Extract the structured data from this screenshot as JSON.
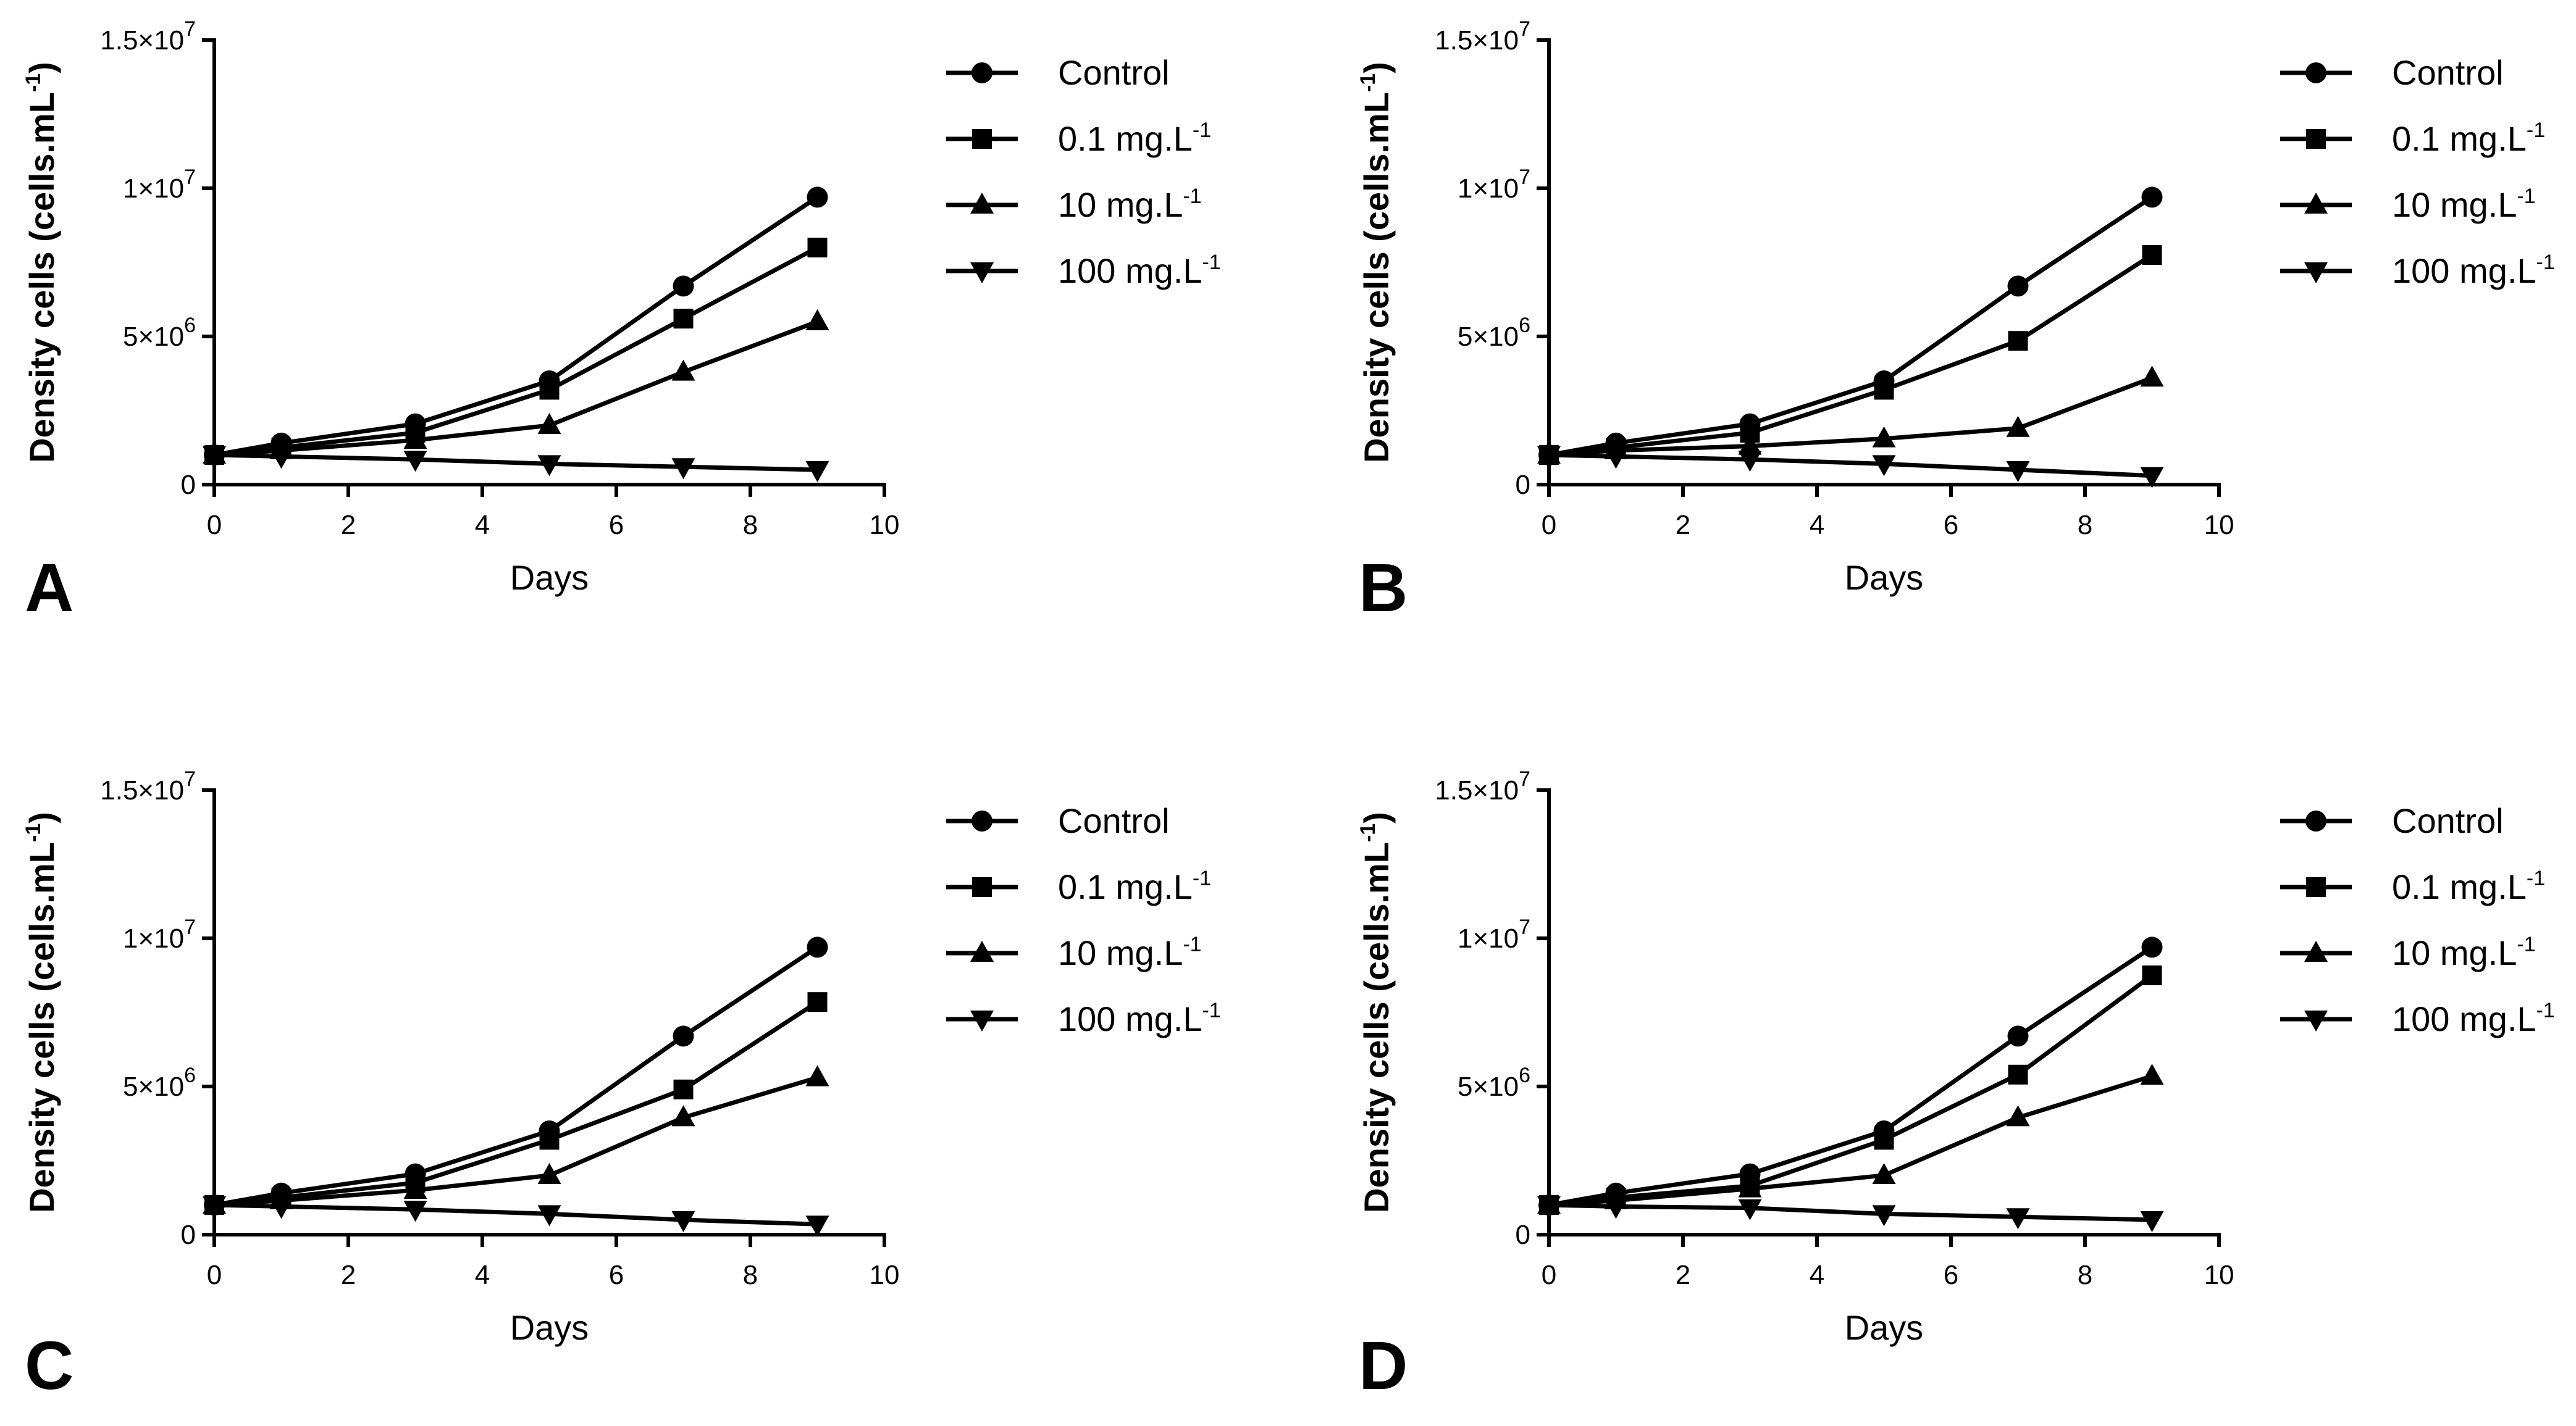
{
  "figure": {
    "color": "#000000",
    "background": "#ffffff"
  },
  "chart_data": [
    {
      "type": "line",
      "panel_label": "A",
      "xlabel": "Days",
      "ylabel_main": "Density cells (cells.mL",
      "ylabel_sup": "-1",
      "ylabel_end": ")",
      "xlim": [
        0,
        10
      ],
      "ylim": [
        0,
        15000000
      ],
      "xticks": [
        0,
        2,
        4,
        6,
        8,
        10
      ],
      "yticks": [
        {
          "value": 0,
          "base": "0",
          "exp": ""
        },
        {
          "value": 5000000,
          "base": "5×10",
          "exp": "6"
        },
        {
          "value": 10000000,
          "base": "1×10",
          "exp": "7"
        },
        {
          "value": 15000000,
          "base": "1.5×10",
          "exp": "7"
        }
      ],
      "x": [
        0,
        1,
        3,
        5,
        7,
        9
      ],
      "series": [
        {
          "name": "Control",
          "unit_sup": "",
          "marker": "circle",
          "values": [
            1000000,
            1400000,
            2050000,
            3500000,
            6700000,
            9700000
          ]
        },
        {
          "name": "0.1 mg.L",
          "unit_sup": "-1",
          "marker": "square",
          "values": [
            1000000,
            1250000,
            1750000,
            3200000,
            5600000,
            8000000
          ]
        },
        {
          "name": "10 mg.L",
          "unit_sup": "-1",
          "marker": "triangle-up",
          "values": [
            1000000,
            1150000,
            1500000,
            2000000,
            3800000,
            5500000
          ]
        },
        {
          "name": "100 mg.L",
          "unit_sup": "-1",
          "marker": "triangle-down",
          "values": [
            1000000,
            950000,
            850000,
            700000,
            600000,
            500000
          ]
        }
      ]
    },
    {
      "type": "line",
      "panel_label": "B",
      "xlabel": "Days",
      "ylabel_main": "Density cells (cells.mL",
      "ylabel_sup": "-1",
      "ylabel_end": ")",
      "xlim": [
        0,
        10
      ],
      "ylim": [
        0,
        15000000
      ],
      "xticks": [
        0,
        2,
        4,
        6,
        8,
        10
      ],
      "yticks": [
        {
          "value": 0,
          "base": "0",
          "exp": ""
        },
        {
          "value": 5000000,
          "base": "5×10",
          "exp": "6"
        },
        {
          "value": 10000000,
          "base": "1×10",
          "exp": "7"
        },
        {
          "value": 15000000,
          "base": "1.5×10",
          "exp": "7"
        }
      ],
      "x": [
        0,
        1,
        3,
        5,
        7,
        9
      ],
      "series": [
        {
          "name": "Control",
          "unit_sup": "",
          "marker": "circle",
          "values": [
            1000000,
            1400000,
            2050000,
            3500000,
            6700000,
            9700000
          ]
        },
        {
          "name": "0.1 mg.L",
          "unit_sup": "-1",
          "marker": "square",
          "values": [
            1000000,
            1250000,
            1750000,
            3200000,
            4850000,
            7750000
          ]
        },
        {
          "name": "10 mg.L",
          "unit_sup": "-1",
          "marker": "triangle-up",
          "values": [
            1000000,
            1150000,
            1300000,
            1550000,
            1900000,
            3600000
          ]
        },
        {
          "name": "100 mg.L",
          "unit_sup": "-1",
          "marker": "triangle-down",
          "values": [
            1000000,
            950000,
            850000,
            700000,
            500000,
            300000
          ]
        }
      ]
    },
    {
      "type": "line",
      "panel_label": "C",
      "xlabel": "Days",
      "ylabel_main": "Density cells  (cells.mL",
      "ylabel_sup": "-1",
      "ylabel_end": ")",
      "xlim": [
        0,
        10
      ],
      "ylim": [
        0,
        15000000
      ],
      "xticks": [
        0,
        2,
        4,
        6,
        8,
        10
      ],
      "yticks": [
        {
          "value": 0,
          "base": "0",
          "exp": ""
        },
        {
          "value": 5000000,
          "base": "5×10",
          "exp": "6"
        },
        {
          "value": 10000000,
          "base": "1×10",
          "exp": "7"
        },
        {
          "value": 15000000,
          "base": "1.5×10",
          "exp": "7"
        }
      ],
      "x": [
        0,
        1,
        3,
        5,
        7,
        9
      ],
      "series": [
        {
          "name": "Control",
          "unit_sup": "",
          "marker": "circle",
          "values": [
            1000000,
            1400000,
            2050000,
            3500000,
            6700000,
            9700000
          ]
        },
        {
          "name": "0.1 mg.L",
          "unit_sup": "-1",
          "marker": "square",
          "values": [
            1000000,
            1250000,
            1750000,
            3200000,
            4900000,
            7850000
          ]
        },
        {
          "name": "10 mg.L",
          "unit_sup": "-1",
          "marker": "triangle-up",
          "values": [
            1000000,
            1150000,
            1500000,
            2000000,
            3950000,
            5300000
          ]
        },
        {
          "name": "100 mg.L",
          "unit_sup": "-1",
          "marker": "triangle-down",
          "values": [
            1000000,
            950000,
            850000,
            700000,
            500000,
            350000
          ]
        }
      ]
    },
    {
      "type": "line",
      "panel_label": "D",
      "xlabel": "Days",
      "ylabel_main": "Density cells (cells.mL",
      "ylabel_sup": "-1",
      "ylabel_end": ")",
      "xlim": [
        0,
        10
      ],
      "ylim": [
        0,
        15000000
      ],
      "xticks": [
        0,
        2,
        4,
        6,
        8,
        10
      ],
      "yticks": [
        {
          "value": 0,
          "base": "0",
          "exp": ""
        },
        {
          "value": 5000000,
          "base": "5×10",
          "exp": "6"
        },
        {
          "value": 10000000,
          "base": "1×10",
          "exp": "7"
        },
        {
          "value": 15000000,
          "base": "1.5×10",
          "exp": "7"
        }
      ],
      "x": [
        0,
        1,
        3,
        5,
        7,
        9
      ],
      "series": [
        {
          "name": "Control",
          "unit_sup": "",
          "marker": "circle",
          "values": [
            1000000,
            1400000,
            2050000,
            3500000,
            6700000,
            9700000
          ]
        },
        {
          "name": "0.1 mg.L",
          "unit_sup": "-1",
          "marker": "square",
          "values": [
            1000000,
            1250000,
            1650000,
            3200000,
            5400000,
            8750000
          ]
        },
        {
          "name": "10 mg.L",
          "unit_sup": "-1",
          "marker": "triangle-up",
          "values": [
            1000000,
            1150000,
            1550000,
            2000000,
            3950000,
            5350000
          ]
        },
        {
          "name": "100 mg.L",
          "unit_sup": "-1",
          "marker": "triangle-down",
          "values": [
            1000000,
            950000,
            900000,
            700000,
            600000,
            500000
          ]
        }
      ]
    }
  ]
}
